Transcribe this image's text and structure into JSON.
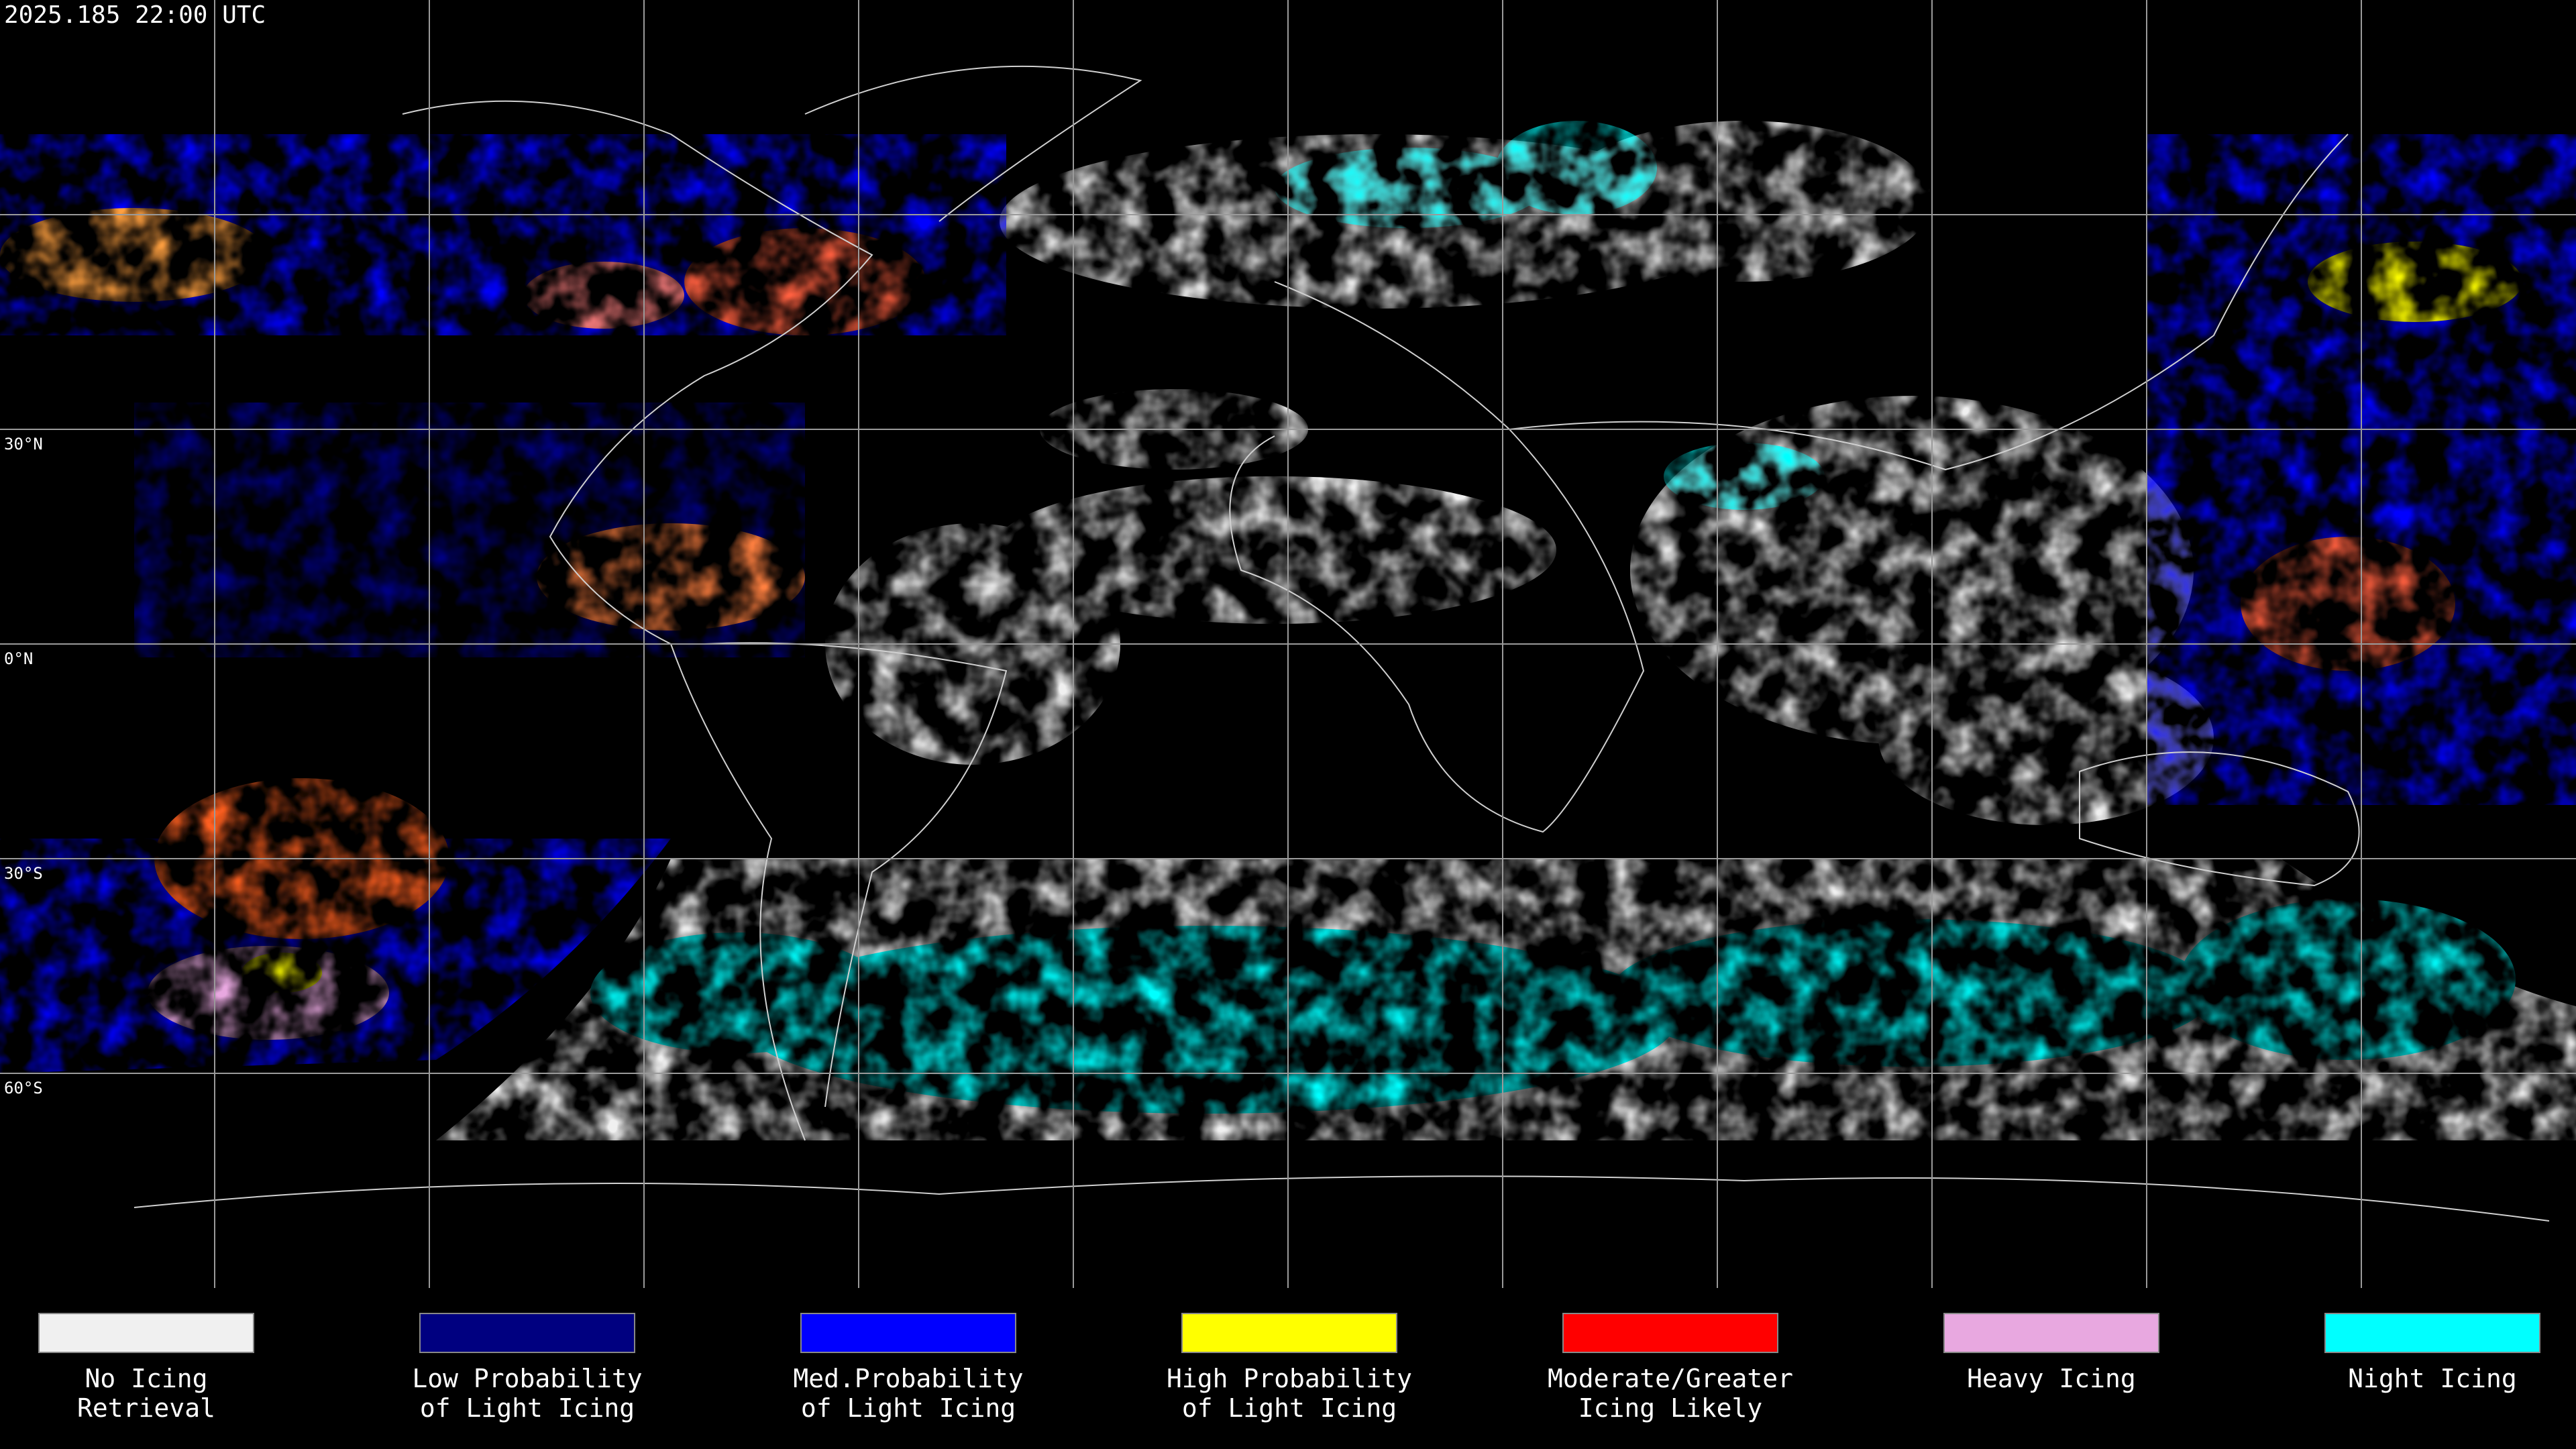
{
  "header": {
    "timestamp": "2025.185 22:00 UTC"
  },
  "map": {
    "latitude_labels": [
      "30°N",
      "0°N",
      "30°S",
      "60°S"
    ]
  },
  "legend": [
    {
      "lines": [
        "No Icing",
        "Retrieval"
      ],
      "color": "#f0f0f0"
    },
    {
      "lines": [
        "Low Probability",
        "of Light Icing"
      ],
      "color": "#000080"
    },
    {
      "lines": [
        "Med.Probability",
        "of Light Icing"
      ],
      "color": "#0000ff"
    },
    {
      "lines": [
        "High Probability",
        "of Light Icing"
      ],
      "color": "#ffff00"
    },
    {
      "lines": [
        "Moderate/Greater",
        "Icing Likely"
      ],
      "color": "#ff0000"
    },
    {
      "lines": [
        "Heavy Icing"
      ],
      "color": "#e8a8e0"
    },
    {
      "lines": [
        "Night Icing"
      ],
      "color": "#00ffff"
    }
  ]
}
